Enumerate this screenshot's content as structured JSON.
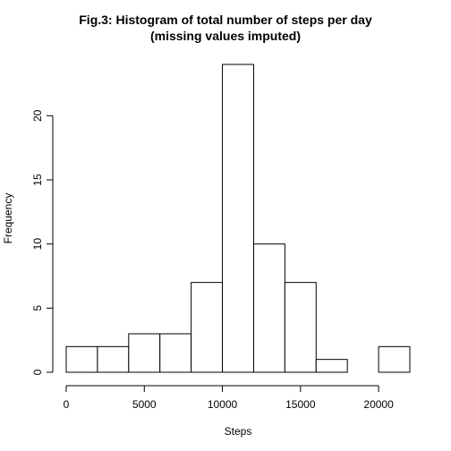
{
  "chart_data": {
    "type": "bar",
    "title_lines": [
      "Fig.3: Histogram of total number of steps per day",
      "(missing values imputed)"
    ],
    "xlabel": "Steps",
    "ylabel": "Frequency",
    "bin_edges": [
      0,
      2000,
      4000,
      6000,
      8000,
      10000,
      12000,
      14000,
      16000,
      18000,
      20000,
      22000
    ],
    "values": [
      2,
      2,
      3,
      3,
      7,
      24,
      10,
      7,
      1,
      0,
      2
    ],
    "xlim": [
      0,
      22000
    ],
    "ylim": [
      0,
      24
    ],
    "x_ticks": [
      0,
      5000,
      10000,
      15000,
      20000
    ],
    "y_ticks": [
      0,
      5,
      10,
      15,
      20
    ],
    "colors": {
      "bar_fill": "#ffffff",
      "bar_stroke": "#000000"
    },
    "grid": false
  }
}
